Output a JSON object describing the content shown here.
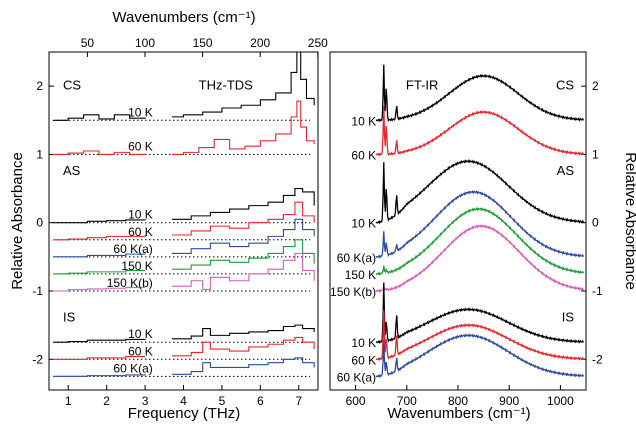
{
  "chart_data": [
    {
      "type": "line",
      "panel": "THz-TDS",
      "label": "THz-TDS",
      "xlabel": "Frequency (THz)",
      "x2label": "Wavenumbers (cm⁻¹)",
      "ylabel": "Relative Absorbance",
      "xlim": [
        0.5,
        7.5
      ],
      "ylim": [
        -2.45,
        2.5
      ],
      "xticks": [
        1,
        2,
        3,
        4,
        5,
        6,
        7
      ],
      "x2ticks": [
        50,
        100,
        150,
        200,
        250
      ],
      "yticks": [
        -2,
        -1,
        0,
        1,
        2
      ],
      "gap": [
        3.25,
        3.65
      ],
      "samples": [
        "CS",
        "AS",
        "IS"
      ],
      "series": [
        {
          "name": "10 K",
          "group": "CS",
          "color": "#000000",
          "offset": 1.5,
          "x": [
            0.6,
            1.0,
            1.4,
            1.8,
            2.2,
            2.6,
            3.0,
            3.7,
            4.0,
            4.5,
            5.0,
            5.5,
            6.0,
            6.4,
            6.8,
            6.95,
            7.05,
            7.2,
            7.4
          ],
          "y": [
            1.5,
            1.53,
            1.58,
            1.52,
            1.58,
            1.53,
            1.52,
            1.55,
            1.58,
            1.62,
            1.68,
            1.72,
            1.8,
            1.9,
            2.2,
            2.5,
            2.1,
            1.82,
            1.72
          ]
        },
        {
          "name": "60 K",
          "group": "CS",
          "color": "#e8262c",
          "offset": 1.0,
          "x": [
            0.6,
            1.0,
            1.4,
            1.8,
            2.2,
            2.6,
            3.0,
            3.7,
            4.0,
            4.4,
            4.8,
            5.2,
            5.6,
            6.0,
            6.4,
            6.8,
            6.95,
            7.05,
            7.2,
            7.4
          ],
          "y": [
            1.0,
            1.02,
            1.05,
            1.0,
            1.03,
            1.0,
            1.0,
            1.0,
            1.03,
            1.1,
            1.22,
            1.08,
            1.12,
            1.2,
            1.3,
            1.55,
            1.78,
            1.4,
            1.2,
            1.15
          ]
        },
        {
          "name": "10 K",
          "group": "AS",
          "color": "#000000",
          "offset": 0.0,
          "x": [
            0.6,
            1.0,
            1.5,
            2.0,
            2.5,
            3.0,
            3.7,
            4.2,
            4.7,
            5.2,
            5.7,
            6.2,
            6.6,
            6.9,
            7.1,
            7.4
          ],
          "y": [
            0.0,
            0.0,
            0.02,
            0.03,
            0.04,
            0.05,
            0.05,
            0.1,
            0.15,
            0.2,
            0.25,
            0.3,
            0.4,
            0.5,
            0.45,
            0.25
          ]
        },
        {
          "name": "60 K",
          "group": "AS",
          "color": "#e8262c",
          "offset": -0.25,
          "x": [
            0.6,
            1.0,
            1.5,
            2.0,
            2.5,
            3.0,
            3.7,
            4.2,
            4.7,
            5.2,
            5.7,
            6.2,
            6.6,
            6.9,
            7.1,
            7.4
          ],
          "y": [
            -0.25,
            -0.24,
            -0.22,
            -0.2,
            -0.2,
            -0.18,
            -0.18,
            -0.12,
            -0.05,
            -0.08,
            0.0,
            0.05,
            0.12,
            0.3,
            0.1,
            0.0
          ]
        },
        {
          "name": "60 K(a)",
          "group": "AS",
          "color": "#2b4aa0",
          "offset": -0.5,
          "x": [
            0.6,
            1.0,
            1.5,
            2.0,
            2.5,
            3.0,
            3.7,
            4.2,
            4.7,
            5.2,
            5.7,
            6.2,
            6.6,
            6.9,
            7.1,
            7.4
          ],
          "y": [
            -0.5,
            -0.5,
            -0.48,
            -0.48,
            -0.46,
            -0.45,
            -0.45,
            -0.38,
            -0.3,
            -0.35,
            -0.3,
            -0.2,
            -0.1,
            0.05,
            -0.1,
            -0.2
          ]
        },
        {
          "name": "150 K",
          "group": "AS",
          "color": "#1e9a3a",
          "offset": -0.75,
          "x": [
            0.6,
            1.0,
            1.5,
            2.0,
            2.5,
            3.0,
            3.7,
            4.2,
            4.7,
            5.2,
            5.7,
            6.2,
            6.6,
            6.9,
            7.1,
            7.4
          ],
          "y": [
            -0.75,
            -0.74,
            -0.72,
            -0.72,
            -0.7,
            -0.7,
            -0.68,
            -0.62,
            -0.55,
            -0.58,
            -0.52,
            -0.45,
            -0.35,
            -0.25,
            -0.45,
            -0.6
          ]
        },
        {
          "name": "150 K(b)",
          "group": "AS",
          "color": "#d65cb8",
          "offset": -1.0,
          "x": [
            0.6,
            1.0,
            1.5,
            2.0,
            2.5,
            3.0,
            3.7,
            4.2,
            4.5,
            4.7,
            5.2,
            5.7,
            6.2,
            6.6,
            6.9,
            7.1,
            7.4
          ],
          "y": [
            -1.0,
            -0.98,
            -0.97,
            -0.96,
            -0.95,
            -0.95,
            -0.93,
            -0.85,
            -0.98,
            -0.8,
            -0.85,
            -0.75,
            -0.68,
            -0.55,
            -0.45,
            -0.7,
            -0.85
          ]
        },
        {
          "name": "10 K",
          "group": "IS",
          "color": "#000000",
          "offset": -1.75,
          "x": [
            0.6,
            1.0,
            1.5,
            2.0,
            2.5,
            3.0,
            3.7,
            4.2,
            4.5,
            4.7,
            5.2,
            5.7,
            6.2,
            6.6,
            6.9,
            7.1,
            7.4
          ],
          "y": [
            -1.75,
            -1.74,
            -1.72,
            -1.72,
            -1.71,
            -1.7,
            -1.7,
            -1.66,
            -1.55,
            -1.65,
            -1.62,
            -1.6,
            -1.58,
            -1.52,
            -1.5,
            -1.55,
            -1.6
          ]
        },
        {
          "name": "60 K",
          "group": "IS",
          "color": "#e8262c",
          "offset": -2.0,
          "x": [
            0.6,
            1.0,
            1.5,
            2.0,
            2.5,
            3.0,
            3.7,
            4.2,
            4.5,
            4.7,
            5.2,
            5.7,
            6.2,
            6.6,
            6.9,
            7.1,
            7.4
          ],
          "y": [
            -2.0,
            -2.0,
            -1.98,
            -1.98,
            -1.96,
            -1.96,
            -1.95,
            -1.9,
            -1.75,
            -1.85,
            -1.88,
            -1.82,
            -1.78,
            -1.72,
            -1.68,
            -1.75,
            -1.85
          ]
        },
        {
          "name": "60 K(a)",
          "group": "IS",
          "color": "#2b4aa0",
          "offset": -2.25,
          "x": [
            0.6,
            1.0,
            1.5,
            2.0,
            2.5,
            3.0,
            3.7,
            4.2,
            4.5,
            4.7,
            5.2,
            5.7,
            6.2,
            6.6,
            6.9,
            7.1,
            7.4
          ],
          "y": [
            -2.25,
            -2.25,
            -2.24,
            -2.24,
            -2.23,
            -2.22,
            -2.22,
            -2.18,
            -2.05,
            -2.12,
            -2.12,
            -2.08,
            -2.05,
            -2.0,
            -1.98,
            -2.05,
            -2.12
          ]
        }
      ]
    },
    {
      "type": "line",
      "panel": "FT-IR",
      "label": "FT-IR",
      "xlabel": "Wavenumbers (cm⁻¹)",
      "ylabel": "Relative Absorbance",
      "xlim": [
        550,
        1050
      ],
      "ylim": [
        -2.45,
        2.5
      ],
      "xticks": [
        600,
        700,
        800,
        900,
        1000
      ],
      "yticks": [
        -2,
        -1,
        0,
        1,
        2
      ],
      "samples": [
        "CS",
        "AS",
        "IS"
      ],
      "series": [
        {
          "name": "10 K",
          "group": "CS",
          "color": "#000000",
          "base": 1.5,
          "hump_center": 850,
          "hump_width": 95,
          "hump_height": 0.65,
          "peak_heights": [
            0.8,
            0.5,
            0.2
          ],
          "peaks": [
            655,
            660,
            680
          ]
        },
        {
          "name": "60 K",
          "group": "CS",
          "color": "#e8262c",
          "base": 1.0,
          "hump_center": 850,
          "hump_width": 95,
          "hump_height": 0.62,
          "peak_heights": [
            0.7,
            0.45,
            0.2
          ],
          "peaks": [
            655,
            660,
            680
          ]
        },
        {
          "name": "10 K",
          "group": "AS",
          "color": "#000000",
          "base": 0.0,
          "hump_center": 820,
          "hump_width": 110,
          "hump_height": 0.9,
          "peak_heights": [
            0.85,
            0.5,
            0.3
          ],
          "peaks": [
            655,
            660,
            680
          ]
        },
        {
          "name": "60 K(a)",
          "group": "AS",
          "color": "#2b4aa0",
          "base": -0.5,
          "hump_center": 830,
          "hump_width": 105,
          "hump_height": 0.95,
          "peak_heights": [
            0.35,
            0.2,
            0.1
          ],
          "peaks": [
            655,
            660,
            680
          ]
        },
        {
          "name": "150 K",
          "group": "AS",
          "color": "#1e9a3a",
          "base": -0.75,
          "hump_center": 840,
          "hump_width": 105,
          "hump_height": 0.95,
          "peak_heights": [
            0.1,
            0.05,
            0.0
          ],
          "peaks": [
            655,
            660,
            680
          ]
        },
        {
          "name": "150 K(b)",
          "group": "AS",
          "color": "#d65cb8",
          "base": -1.0,
          "hump_center": 845,
          "hump_width": 105,
          "hump_height": 0.95,
          "peak_heights": [
            0.05,
            0.02,
            0.0
          ],
          "peaks": [
            655,
            660,
            680
          ]
        },
        {
          "name": "10 K",
          "group": "IS",
          "color": "#000000",
          "base": -1.75,
          "hump_center": 820,
          "hump_width": 110,
          "hump_height": 0.48,
          "peak_heights": [
            0.85,
            0.3,
            0.35
          ],
          "peaks": [
            655,
            660,
            680
          ]
        },
        {
          "name": "60 K",
          "group": "IS",
          "color": "#e8262c",
          "base": -2.0,
          "hump_center": 820,
          "hump_width": 110,
          "hump_height": 0.5,
          "peak_heights": [
            0.7,
            0.3,
            0.3
          ],
          "peaks": [
            655,
            660,
            680
          ]
        },
        {
          "name": "60 K(a)",
          "group": "IS",
          "color": "#2b4aa0",
          "base": -2.25,
          "hump_center": 820,
          "hump_width": 110,
          "hump_height": 0.6,
          "peak_heights": [
            0.5,
            0.2,
            0.2
          ],
          "peaks": [
            655,
            660,
            680
          ]
        }
      ]
    }
  ]
}
